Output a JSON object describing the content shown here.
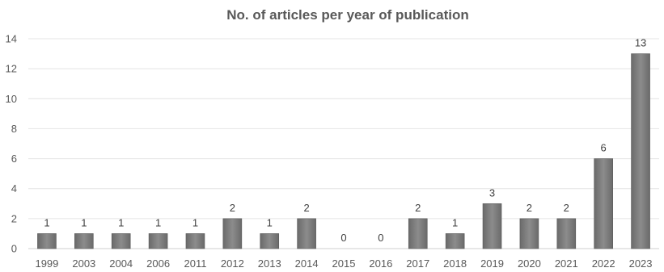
{
  "chart_data": {
    "type": "bar",
    "title": "No. of articles per year of publication",
    "xlabel": "",
    "ylabel": "",
    "categories": [
      "1999",
      "2003",
      "2004",
      "2006",
      "2011",
      "2012",
      "2013",
      "2014",
      "2015",
      "2016",
      "2017",
      "2018",
      "2019",
      "2020",
      "2021",
      "2022",
      "2023"
    ],
    "values": [
      1,
      1,
      1,
      1,
      1,
      2,
      1,
      2,
      0,
      0,
      2,
      1,
      3,
      2,
      2,
      6,
      13
    ],
    "ylim": [
      0,
      14
    ],
    "yticks": [
      0,
      2,
      4,
      6,
      8,
      10,
      12,
      14
    ],
    "grid": true,
    "legend": "none",
    "data_labels": true,
    "colors": {
      "bar": "#7a7a7a",
      "bar_top": "#9a9a9a"
    }
  }
}
